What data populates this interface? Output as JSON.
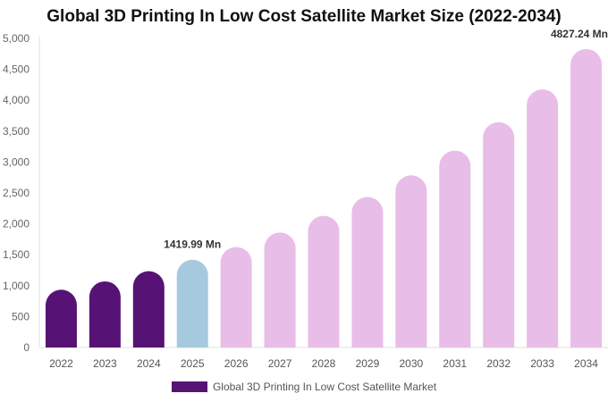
{
  "chart_data": {
    "type": "bar",
    "title": "Global 3D Printing In Low Cost Satellite Market Size (2022-2034)",
    "categories": [
      "2022",
      "2023",
      "2024",
      "2025",
      "2026",
      "2027",
      "2028",
      "2029",
      "2030",
      "2031",
      "2032",
      "2033",
      "2034"
    ],
    "series": [
      {
        "name": "Global 3D Printing In Low Cost Satellite Market",
        "values": [
          935,
          1070,
          1235,
          1419.99,
          1625,
          1860,
          2130,
          2435,
          2785,
          3185,
          3645,
          4175,
          4827.24
        ]
      }
    ],
    "bar_colors": [
      "#561375",
      "#561375",
      "#561375",
      "#a6cadd",
      "#e8bde8",
      "#e8bde8",
      "#e8bde8",
      "#e8bde8",
      "#e8bde8",
      "#e8bde8",
      "#e8bde8",
      "#e8bde8",
      "#e8bde8"
    ],
    "data_labels": [
      {
        "category": "2025",
        "text": "1419.99 Mn"
      },
      {
        "category": "2034",
        "text": "4827.24 Mn"
      }
    ],
    "y_ticks": [
      "0",
      "500",
      "1,000",
      "1,500",
      "2,000",
      "2,500",
      "3,000",
      "3,500",
      "4,000",
      "4,500",
      "5,000"
    ],
    "ylim": [
      0,
      5000
    ],
    "xlabel": "",
    "ylabel": "",
    "grid": false,
    "legend_position": "bottom",
    "legend_color": "#561375"
  }
}
